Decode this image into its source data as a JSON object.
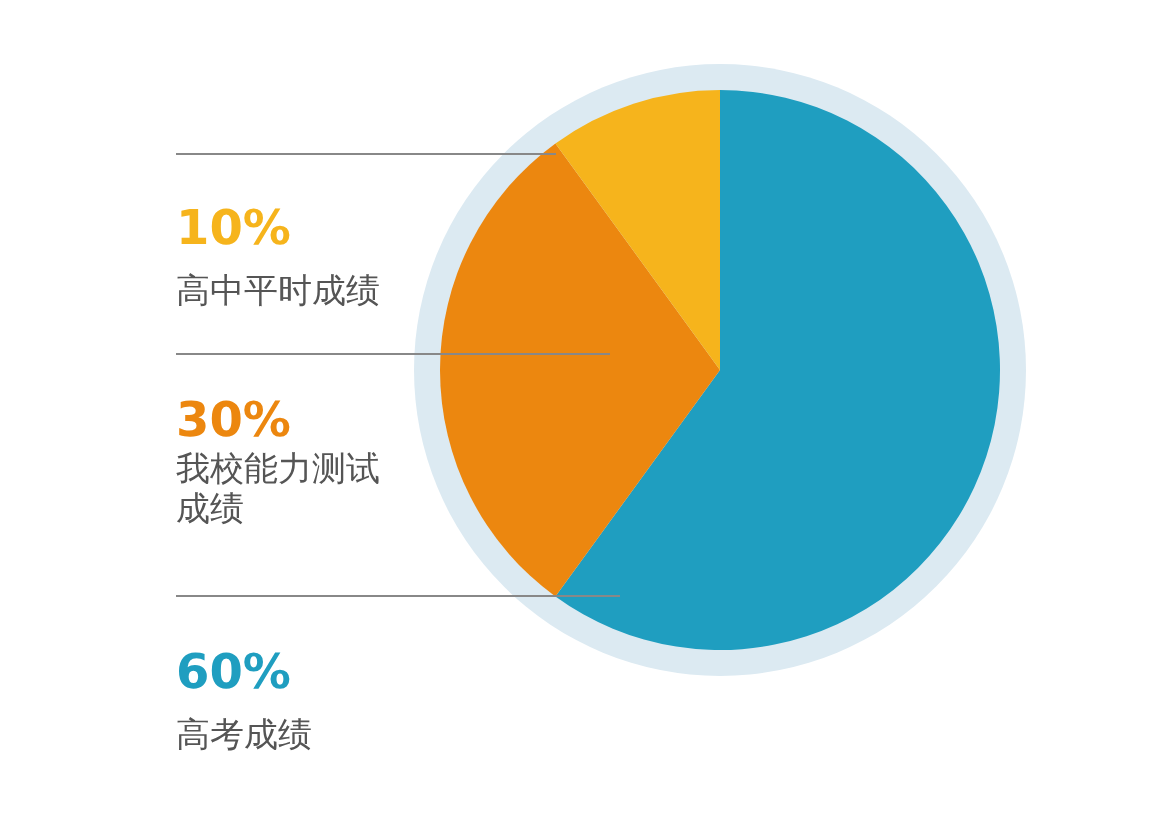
{
  "chart_data": {
    "type": "pie",
    "categories": [
      "高考成绩",
      "我校能力测试成绩",
      "高中平时成绩"
    ],
    "values": [
      60,
      30,
      10
    ],
    "colors": [
      "#1f9ec0",
      "#ec870f",
      "#f6b41c"
    ],
    "value_labels": [
      "60%",
      "30%",
      "10%"
    ]
  }
}
